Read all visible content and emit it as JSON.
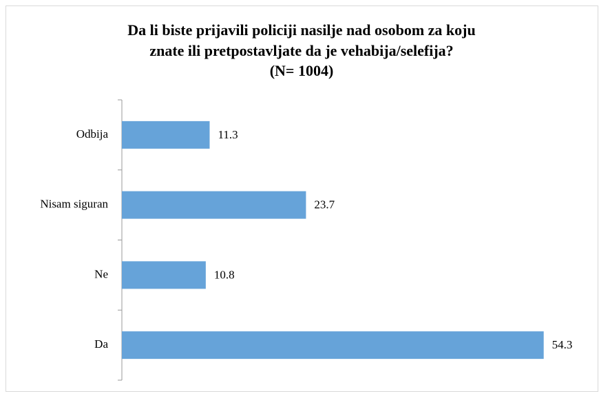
{
  "chart_data": {
    "type": "barh",
    "title": [
      "Da li biste prijavili policiji nasilje nad osobom za koju",
      "znate ili pretpostavljate da je vehabija/selefija?",
      "(N= 1004)"
    ],
    "categories": [
      "Odbija",
      "Nisam siguran",
      "Ne",
      "Da"
    ],
    "values": [
      11.3,
      23.7,
      10.8,
      54.3
    ],
    "color": "#66a3d9",
    "xlim": [
      0,
      60
    ]
  }
}
